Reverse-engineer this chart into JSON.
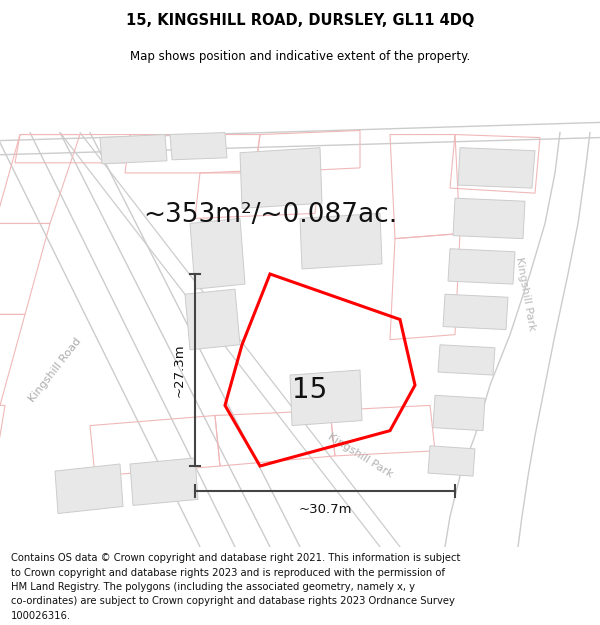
{
  "title": "15, KINGSHILL ROAD, DURSLEY, GL11 4DQ",
  "subtitle": "Map shows position and indicative extent of the property.",
  "area_text": "~353m²/~0.087ac.",
  "property_number": "15",
  "dim_height": "~27.3m",
  "dim_width": "~30.7m",
  "road_label_left": "Kingshill Road",
  "road_label_right": "Kingshill Park",
  "road_label_top_right": "Kingshill Park",
  "footer_lines": [
    "Contains OS data © Crown copyright and database right 2021. This information is subject",
    "to Crown copyright and database rights 2023 and is reproduced with the permission of",
    "HM Land Registry. The polygons (including the associated geometry, namely x, y",
    "co-ordinates) are subject to Crown copyright and database rights 2023 Ordnance Survey",
    "100026316."
  ],
  "map_bg": "#ffffff",
  "building_fill": "#e8e8e8",
  "building_edge": "#cccccc",
  "road_edge": "#cccccc",
  "pink_line": "#f0b8b8",
  "property_outline_color": "#ff0000",
  "dim_color": "#444444",
  "road_label_color": "#aaaaaa",
  "text_color": "#000000",
  "footer_color": "#111111",
  "title_fontsize": 10.5,
  "subtitle_fontsize": 8.5,
  "area_fontsize": 19,
  "number_fontsize": 20,
  "dim_fontsize": 9.5,
  "road_label_fontsize": 8,
  "footer_fontsize": 7.2
}
